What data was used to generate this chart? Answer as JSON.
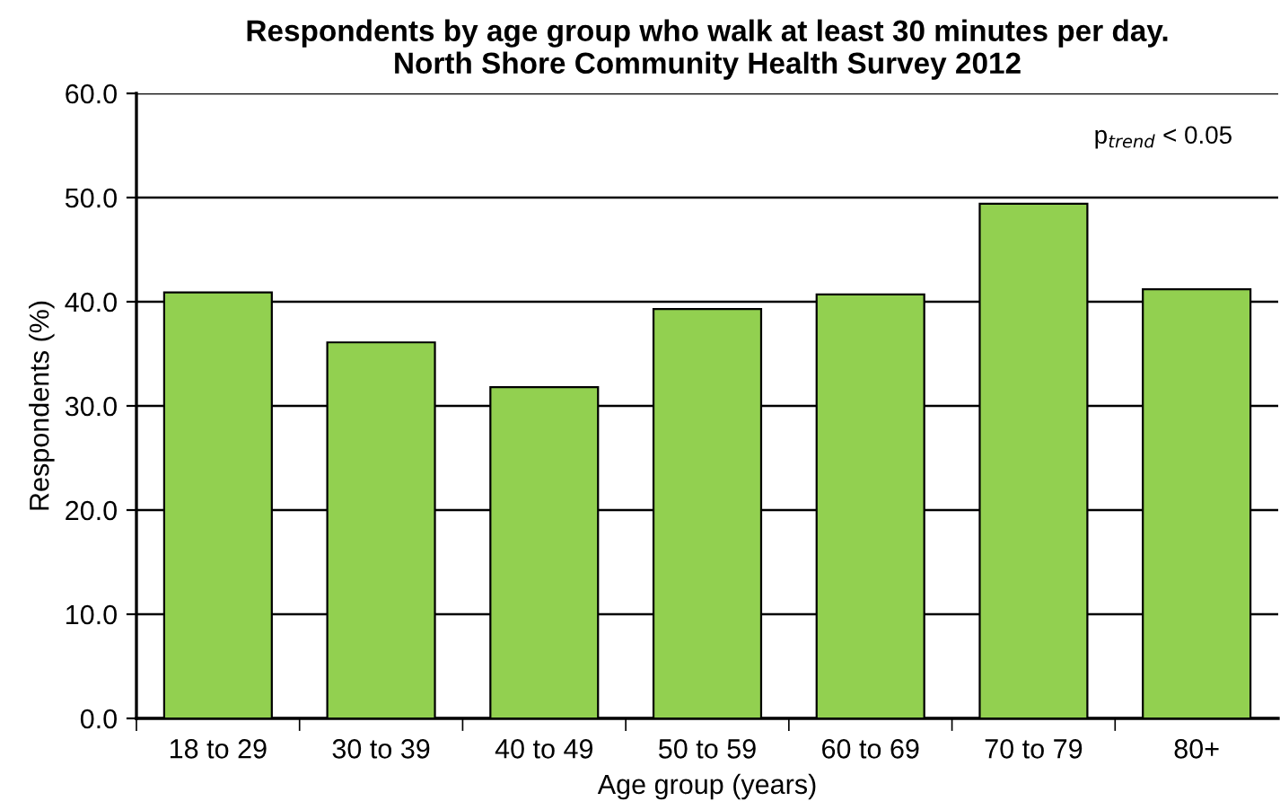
{
  "chart_data": {
    "type": "bar",
    "title": "Respondents by age group who walk at least 30 minutes per day.\nNorth Shore Community Health Survey 2012",
    "xlabel": "Age group (years)",
    "ylabel": "Respondents (%)",
    "categories": [
      "18 to 29",
      "30 to 39",
      "40 to 49",
      "50 to 59",
      "60 to 69",
      "70 to 79",
      "80+"
    ],
    "values": [
      40.9,
      36.1,
      31.8,
      39.3,
      40.7,
      49.4,
      41.2
    ],
    "color": "#92d050",
    "ylim": [
      0,
      60
    ],
    "yticks": [
      {
        "value": 0,
        "label": "0.0"
      },
      {
        "value": 10,
        "label": "10.0"
      },
      {
        "value": 20,
        "label": "20.0"
      },
      {
        "value": 30,
        "label": "30.0"
      },
      {
        "value": 40,
        "label": "40.0"
      },
      {
        "value": 50,
        "label": "50.0"
      },
      {
        "value": 60,
        "label": "60.0"
      }
    ],
    "grid": "y",
    "annotations": [
      "p$_{trend}$ < 0.05"
    ]
  }
}
